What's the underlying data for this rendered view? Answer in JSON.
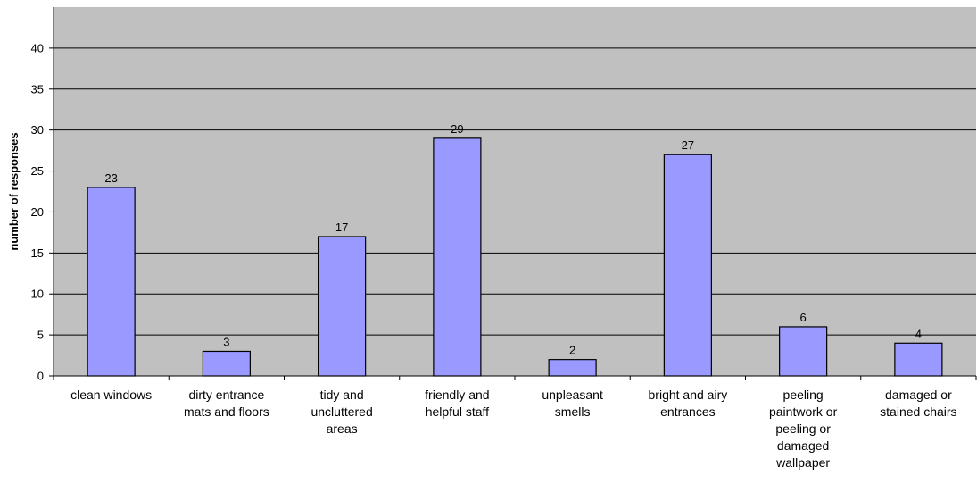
{
  "chart_data": {
    "type": "bar",
    "categories": [
      "clean windows",
      "dirty entrance mats and floors",
      "tidy and uncluttered areas",
      "friendly and helpful staff",
      "unpleasant smells",
      "bright and airy entrances",
      "peeling paintwork or peeling or damaged wallpaper",
      "damaged or stained chairs"
    ],
    "category_label_lines": [
      [
        "clean windows"
      ],
      [
        "dirty entrance",
        "mats and floors"
      ],
      [
        "tidy and",
        "uncluttered",
        "areas"
      ],
      [
        "friendly and",
        "helpful staff"
      ],
      [
        "unpleasant",
        "smells"
      ],
      [
        "bright and airy",
        "entrances"
      ],
      [
        "peeling",
        "paintwork or",
        "peeling or",
        "damaged",
        "wallpaper"
      ],
      [
        "damaged or",
        "stained chairs"
      ]
    ],
    "values": [
      23,
      3,
      17,
      29,
      2,
      27,
      6,
      4
    ],
    "data_labels": [
      "23",
      "3",
      "17",
      "29",
      "2",
      "27",
      "6",
      "4"
    ],
    "ylabel": "number of responses",
    "xlabel": "",
    "ylim": [
      0,
      45
    ],
    "yticks": [
      0,
      5,
      10,
      15,
      20,
      25,
      30,
      35,
      40
    ],
    "grid": true,
    "colors": {
      "plot_background": "#c0c0c0",
      "bar_fill": "#9999ff",
      "bar_stroke": "#000000",
      "gridline": "#000000"
    }
  }
}
